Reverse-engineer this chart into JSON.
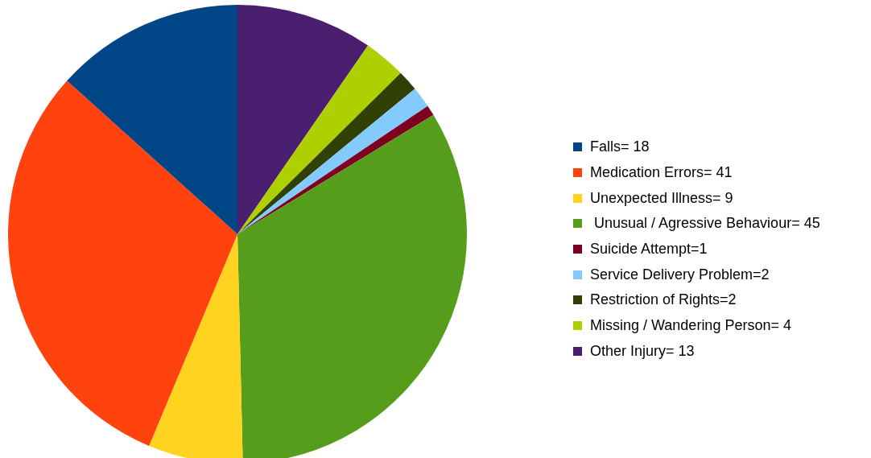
{
  "chart_data": {
    "type": "pie",
    "categories": [
      "Falls= 18",
      "Medication Errors= 41",
      "Unexpected Illness= 9",
      " Unusual / Agressive Behaviour= 45",
      "Suicide Attempt=1",
      "Service Delivery Problem=2",
      "Restriction of Rights=2",
      "Missing / Wandering Person= 4",
      "Other Injury= 13"
    ],
    "values": [
      18,
      41,
      9,
      45,
      1,
      2,
      2,
      4,
      13
    ],
    "colors": [
      "#004586",
      "#ff420e",
      "#ffd320",
      "#579d1c",
      "#7e0021",
      "#83caff",
      "#314004",
      "#aecf00",
      "#4b1f6f"
    ],
    "legend": "right"
  }
}
